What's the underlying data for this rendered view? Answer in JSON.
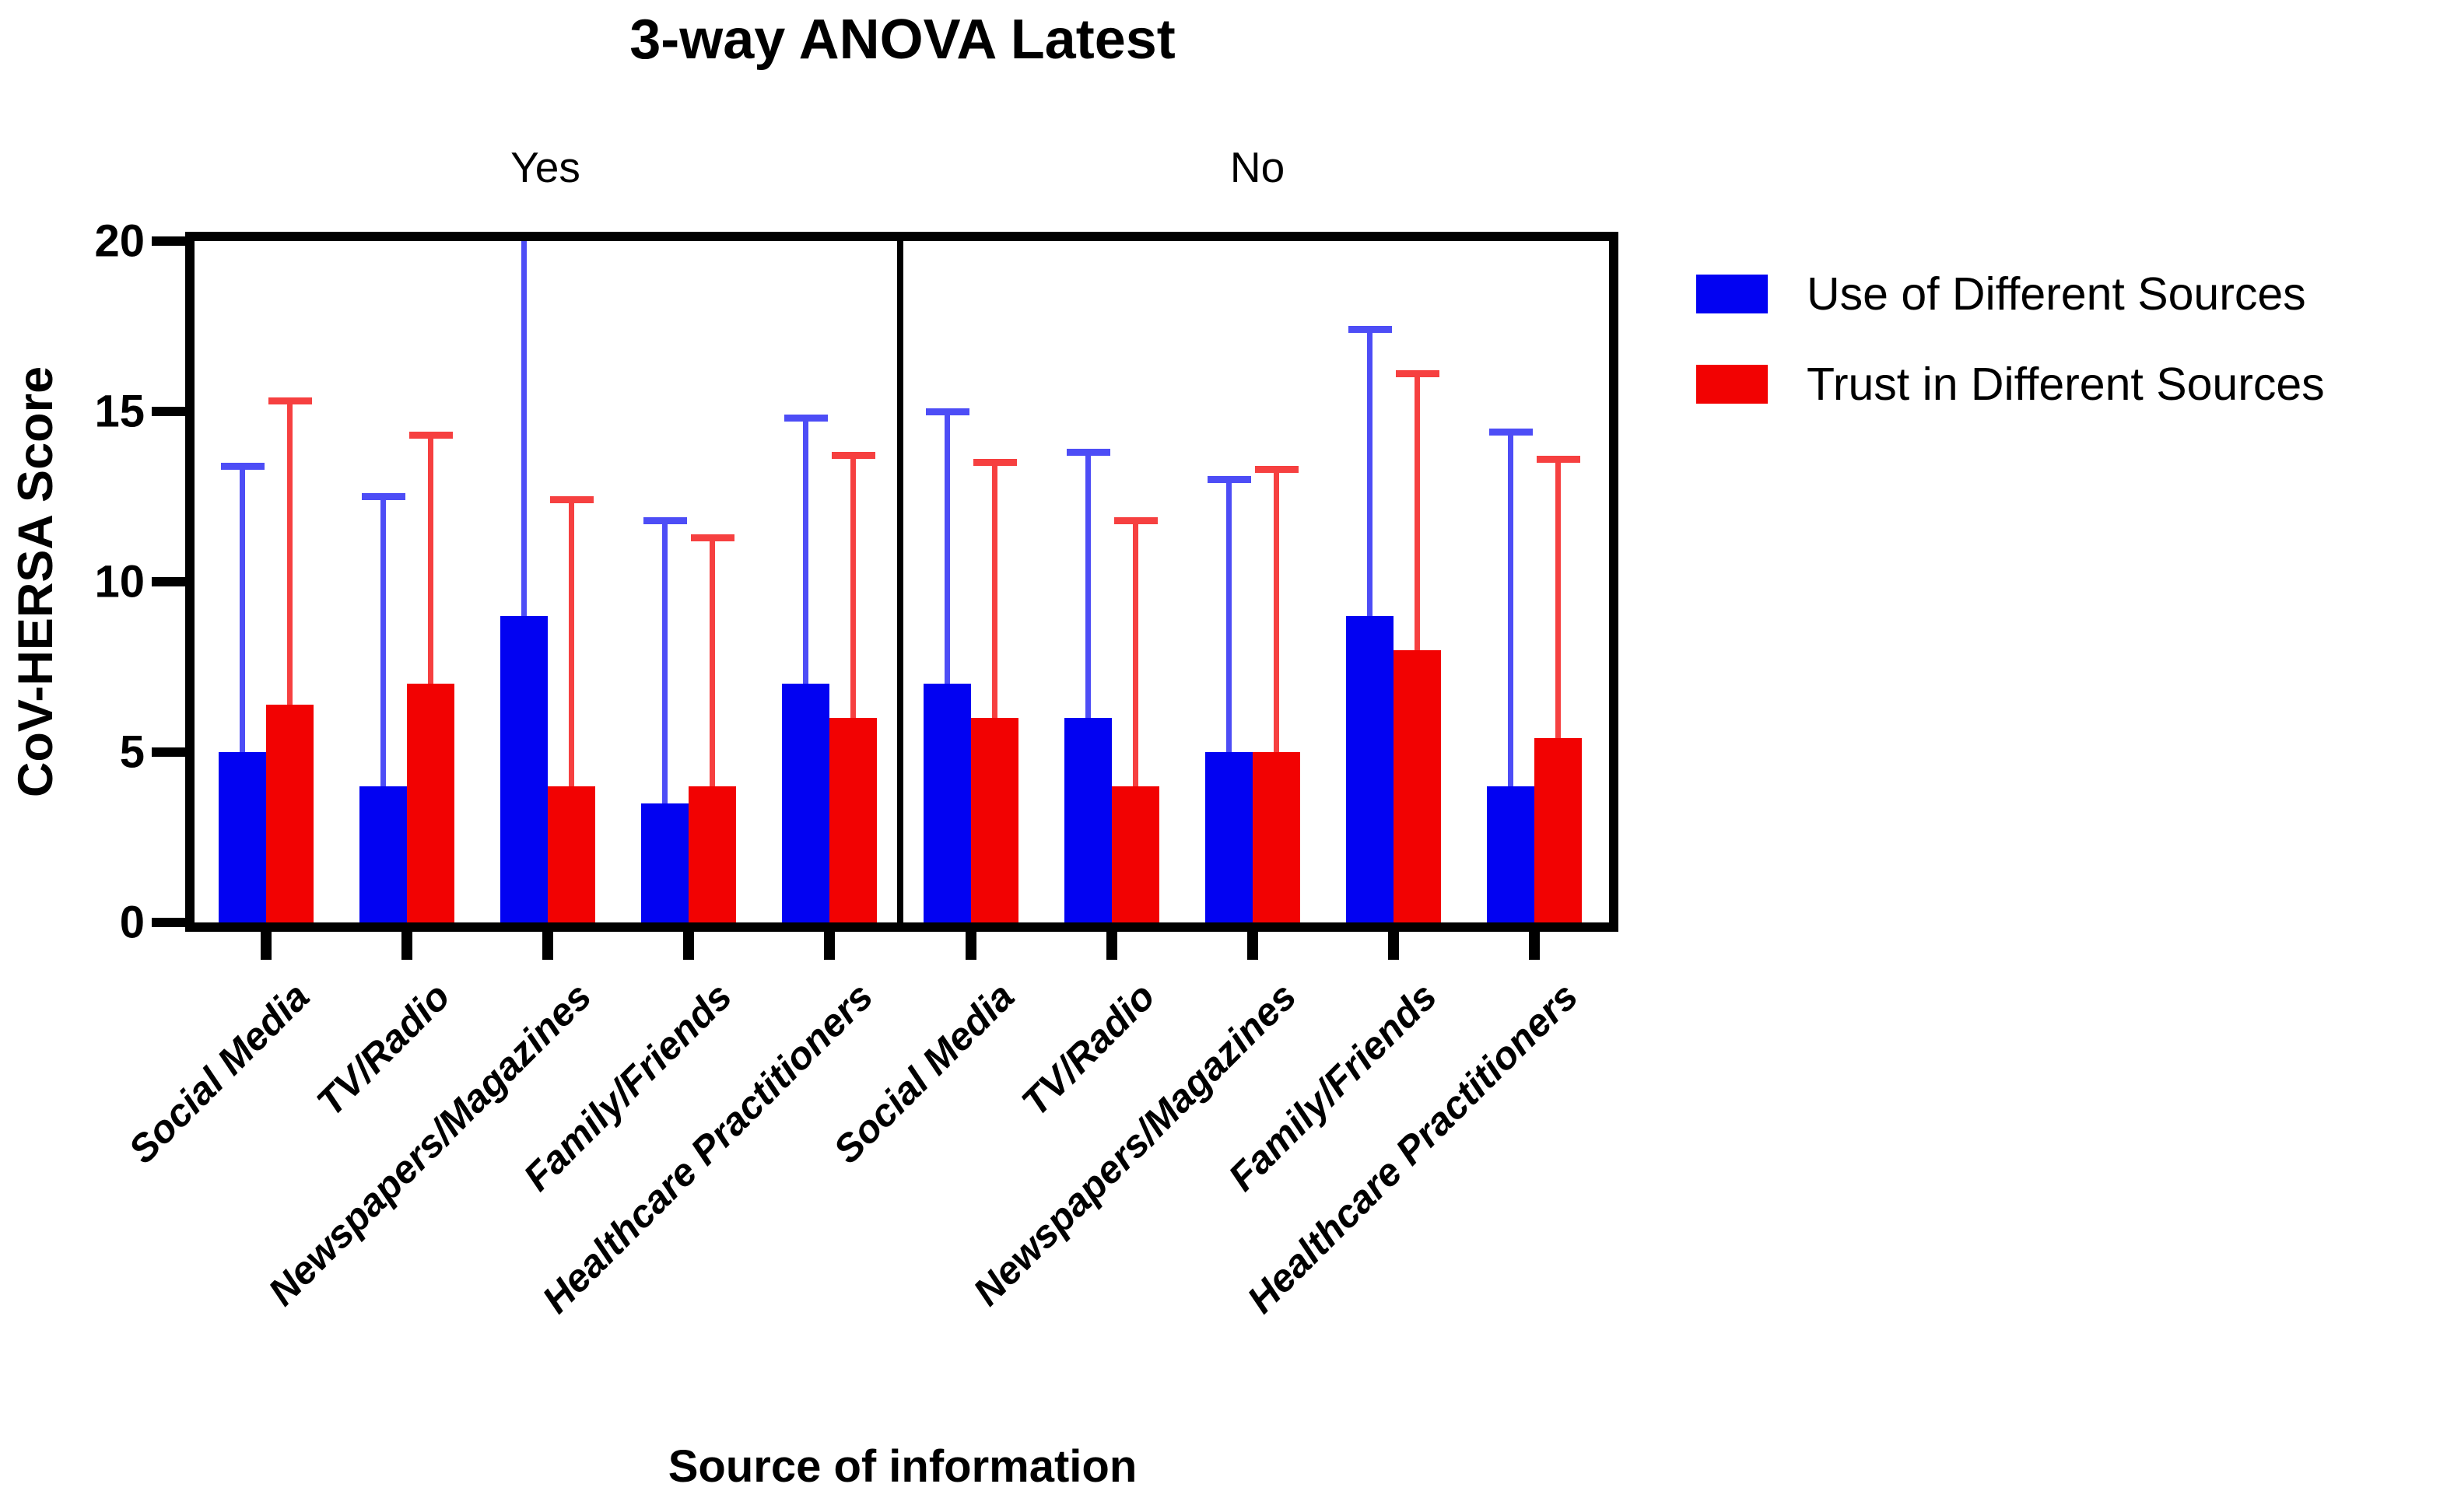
{
  "chart_data": {
    "type": "bar",
    "title": "3-way ANOVA Latest",
    "xlabel": "Source of information",
    "ylabel": "CoV-HERSA Score",
    "ylim": [
      0,
      20
    ],
    "yticks": [
      0,
      5,
      10,
      15,
      20
    ],
    "grid": false,
    "legend_position": "right",
    "error_bars": "upper SD whiskers with caps",
    "categories": [
      "Social Media",
      "TV/Radio",
      "Newspapers/Magazines",
      "Family/Friends",
      "Healthcare Practitioners"
    ],
    "panels": [
      {
        "label": "Yes",
        "series": [
          {
            "name": "Use of Different Sources",
            "values": [
              5.0,
              4.0,
              9.0,
              3.5,
              7.0
            ],
            "errors_top": [
              13.4,
              12.5,
              20.0,
              11.8,
              14.8
            ]
          },
          {
            "name": "Trust in Different Sources",
            "values": [
              6.4,
              7.0,
              4.0,
              4.0,
              6.0
            ],
            "errors_top": [
              15.3,
              14.3,
              12.4,
              11.3,
              13.7
            ]
          }
        ]
      },
      {
        "label": "No",
        "series": [
          {
            "name": "Use of Different Sources",
            "values": [
              7.0,
              6.0,
              5.0,
              9.0,
              4.0
            ],
            "errors_top": [
              15.0,
              13.8,
              13.0,
              17.4,
              14.4
            ]
          },
          {
            "name": "Trust in Different Sources",
            "values": [
              6.0,
              4.0,
              5.0,
              8.0,
              5.4
            ],
            "errors_top": [
              13.5,
              11.8,
              13.3,
              16.1,
              13.6
            ]
          }
        ]
      }
    ],
    "legend": [
      {
        "label": "Use of Different Sources",
        "color": "#0202f2"
      },
      {
        "label": "Trust in Different Sources",
        "color": "#f20202"
      }
    ],
    "colors": {
      "use_bar": "#0202f2",
      "trust_bar": "#f20202",
      "use_error": "#4d4df6",
      "trust_error": "#f64040",
      "axis": "#000000",
      "background": "#ffffff"
    }
  }
}
